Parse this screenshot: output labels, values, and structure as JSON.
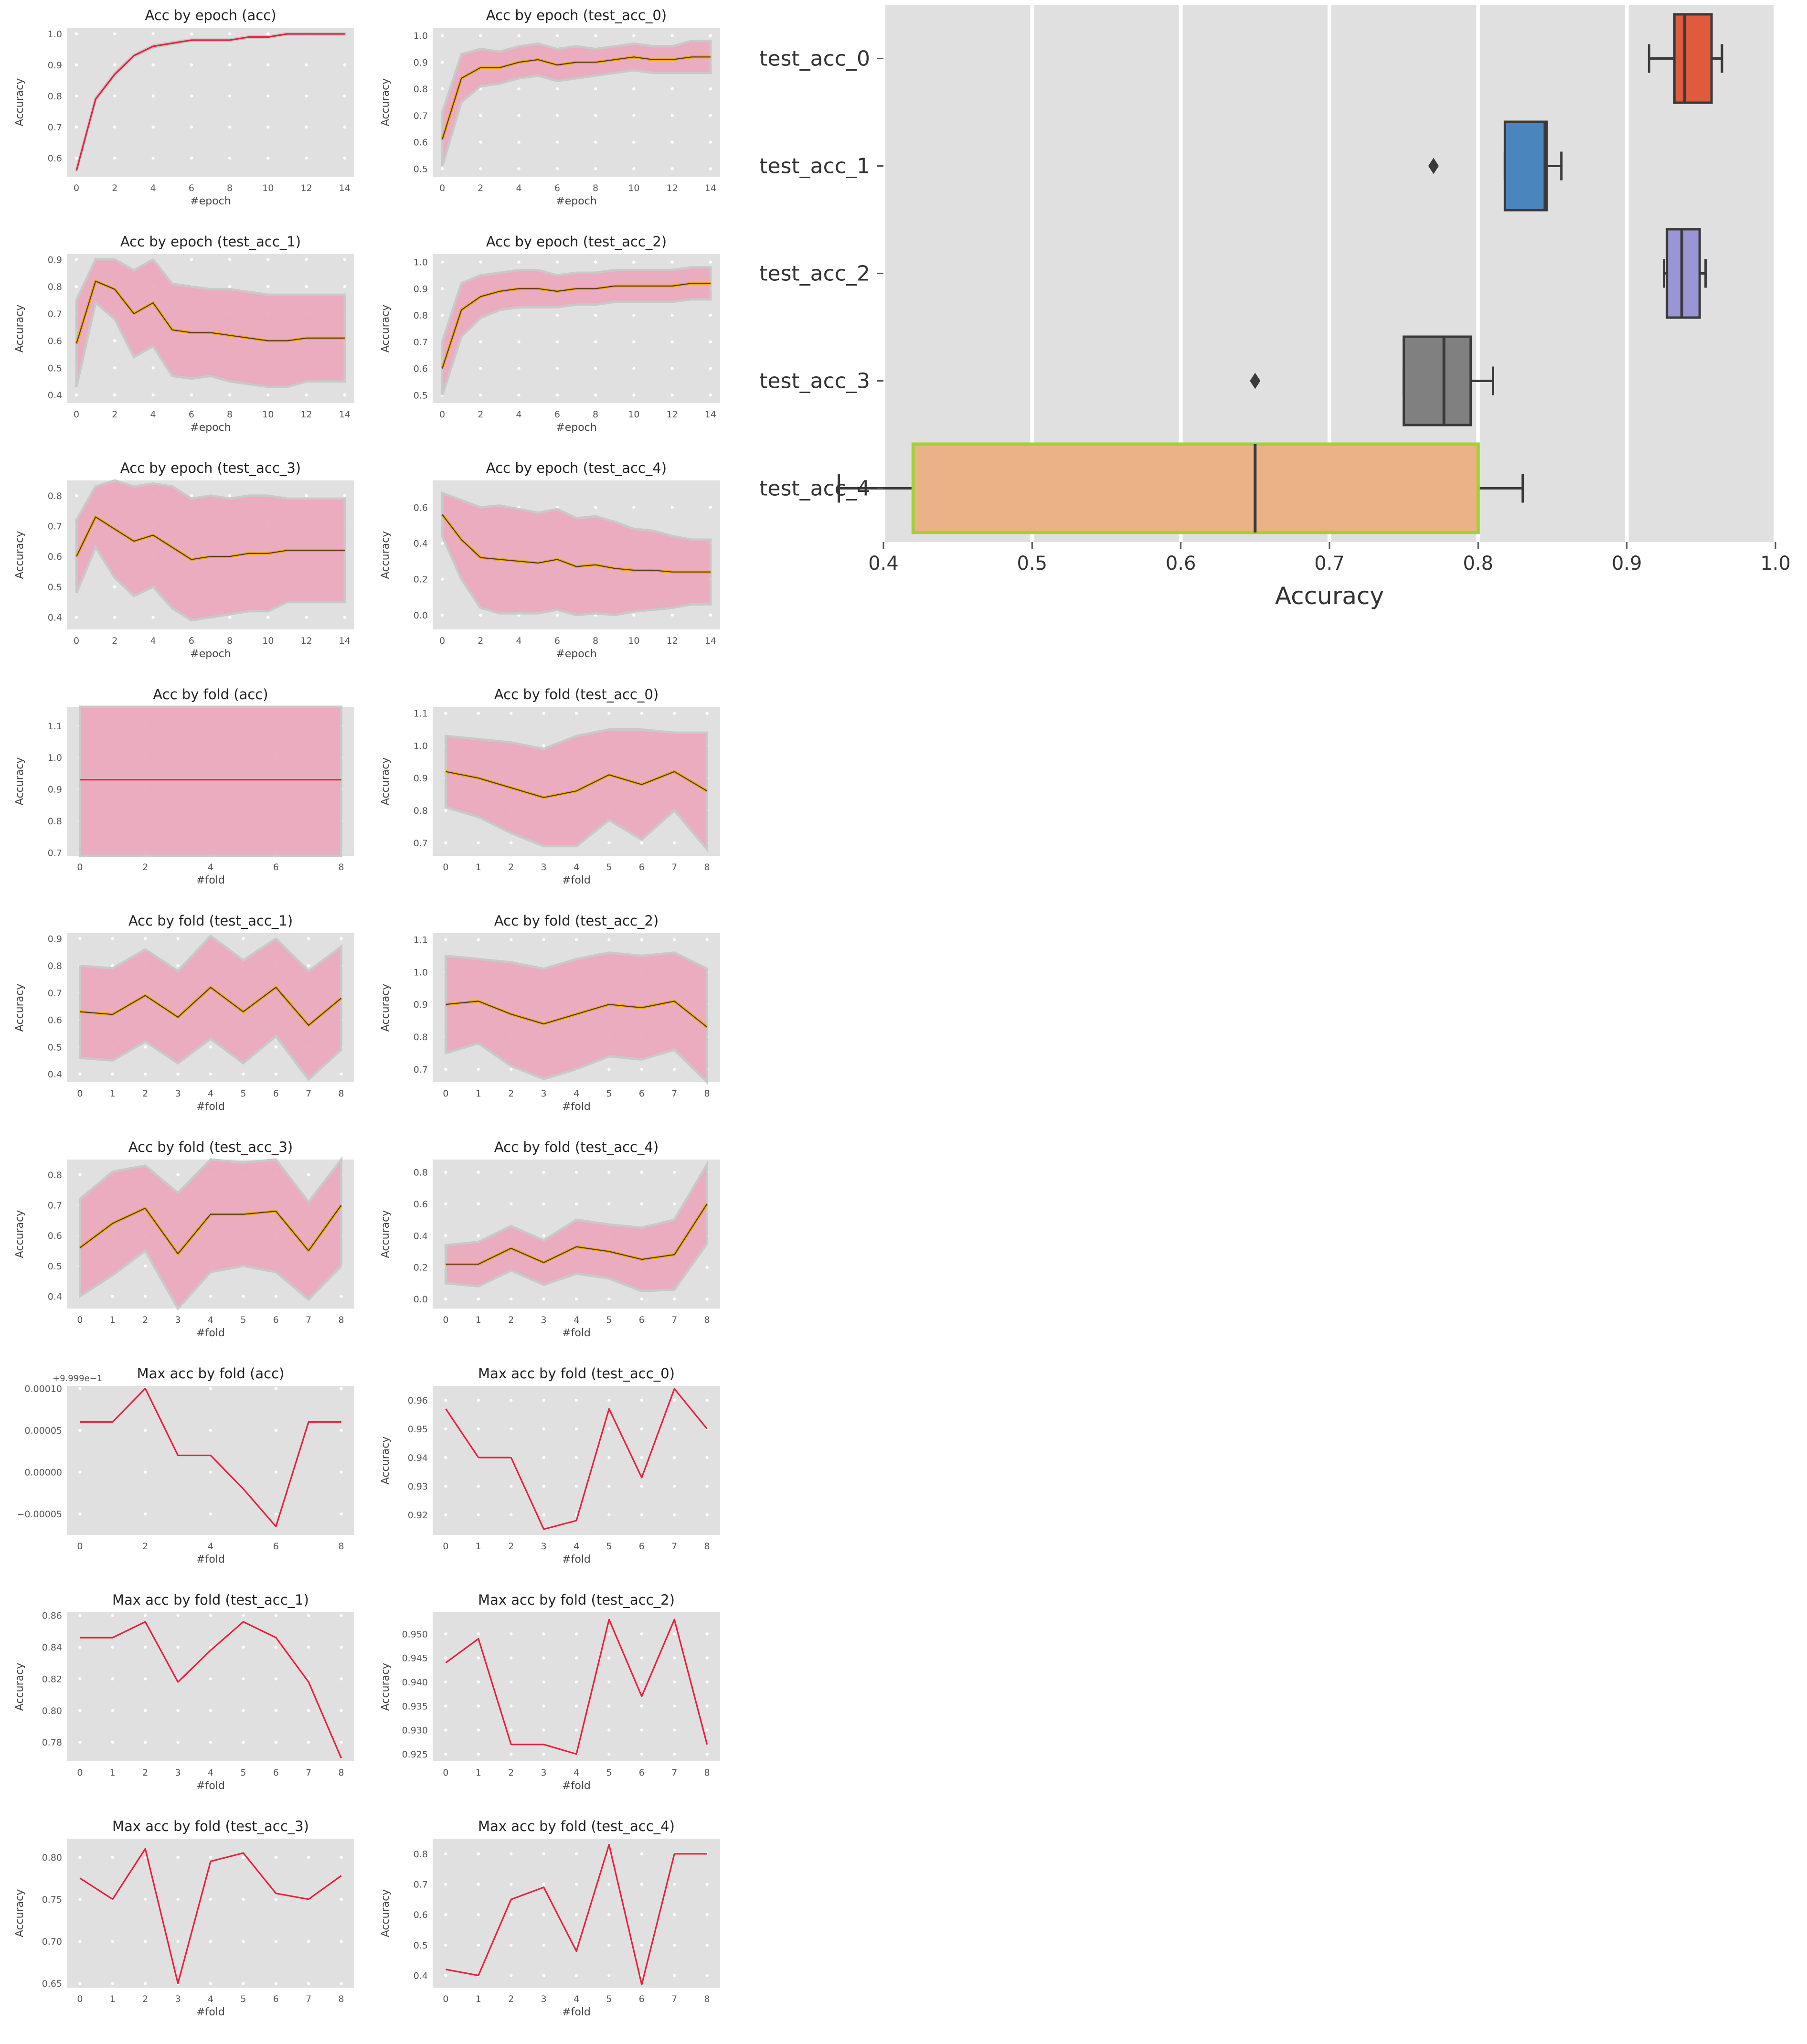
{
  "figure": {
    "background": "#ffffff",
    "plot_bg": "#e0e0e0",
    "grid_color": "#ffffff",
    "band_color": "#ebaabd",
    "band_edge_color": "#c8c8c8",
    "line_color": "#e8203f",
    "mean_color": "#ecaa1f",
    "mean_edge_color": "#5a3818"
  },
  "chart_data": [
    {
      "id": "p0",
      "type": "line",
      "title": "Acc by epoch (acc)",
      "xlabel": "#epoch",
      "ylabel": "Accuracy",
      "style": "band",
      "xticks": [
        0,
        2,
        4,
        6,
        8,
        10,
        12,
        14
      ],
      "yticks": [
        0.6,
        0.7,
        0.8,
        0.9,
        1.0
      ],
      "xlim": [
        -0.5,
        14.5
      ],
      "ylim": [
        0.54,
        1.02
      ],
      "x": [
        0,
        1,
        2,
        3,
        4,
        5,
        6,
        7,
        8,
        9,
        10,
        11,
        12,
        13,
        14
      ],
      "y": [
        0.56,
        0.79,
        0.87,
        0.93,
        0.96,
        0.97,
        0.98,
        0.98,
        0.98,
        0.99,
        0.99,
        1.0,
        1.0,
        1.0,
        1.0
      ],
      "band": [
        0.003,
        0.004,
        0.004,
        0.003,
        0.003,
        0.003,
        0.002,
        0.002,
        0.002,
        0.002,
        0.002,
        0.002,
        0.002,
        0.002,
        0.002
      ]
    },
    {
      "id": "p1",
      "type": "line",
      "title": "Acc by epoch (test_acc_0)",
      "xlabel": "#epoch",
      "ylabel": "Accuracy",
      "style": "band",
      "xticks": [
        0,
        2,
        4,
        6,
        8,
        10,
        12,
        14
      ],
      "yticks": [
        0.5,
        0.6,
        0.7,
        0.8,
        0.9,
        1.0
      ],
      "xlim": [
        -0.5,
        14.5
      ],
      "ylim": [
        0.47,
        1.03
      ],
      "x": [
        0,
        1,
        2,
        3,
        4,
        5,
        6,
        7,
        8,
        9,
        10,
        11,
        12,
        13,
        14
      ],
      "y": [
        0.61,
        0.84,
        0.88,
        0.88,
        0.9,
        0.91,
        0.89,
        0.9,
        0.9,
        0.91,
        0.92,
        0.91,
        0.91,
        0.92,
        0.92
      ],
      "band": [
        0.1,
        0.09,
        0.07,
        0.06,
        0.06,
        0.06,
        0.06,
        0.06,
        0.05,
        0.05,
        0.05,
        0.05,
        0.05,
        0.06,
        0.06
      ]
    },
    {
      "id": "p2",
      "type": "line",
      "title": "Acc by epoch (test_acc_1)",
      "xlabel": "#epoch",
      "ylabel": "Accuracy",
      "style": "band",
      "xticks": [
        0,
        2,
        4,
        6,
        8,
        10,
        12,
        14
      ],
      "yticks": [
        0.4,
        0.5,
        0.6,
        0.7,
        0.8,
        0.9
      ],
      "xlim": [
        -0.5,
        14.5
      ],
      "ylim": [
        0.37,
        0.92
      ],
      "x": [
        0,
        1,
        2,
        3,
        4,
        5,
        6,
        7,
        8,
        9,
        10,
        11,
        12,
        13,
        14
      ],
      "y": [
        0.59,
        0.82,
        0.79,
        0.7,
        0.74,
        0.64,
        0.63,
        0.63,
        0.62,
        0.61,
        0.6,
        0.6,
        0.61,
        0.61,
        0.61
      ],
      "band": [
        0.16,
        0.08,
        0.11,
        0.16,
        0.16,
        0.17,
        0.17,
        0.16,
        0.17,
        0.17,
        0.17,
        0.17,
        0.16,
        0.16,
        0.16
      ]
    },
    {
      "id": "p3",
      "type": "line",
      "title": "Acc by epoch (test_acc_2)",
      "xlabel": "#epoch",
      "ylabel": "Accuracy",
      "style": "band",
      "xticks": [
        0,
        2,
        4,
        6,
        8,
        10,
        12,
        14
      ],
      "yticks": [
        0.5,
        0.6,
        0.7,
        0.8,
        0.9,
        1.0
      ],
      "xlim": [
        -0.5,
        14.5
      ],
      "ylim": [
        0.47,
        1.03
      ],
      "x": [
        0,
        1,
        2,
        3,
        4,
        5,
        6,
        7,
        8,
        9,
        10,
        11,
        12,
        13,
        14
      ],
      "y": [
        0.6,
        0.82,
        0.87,
        0.89,
        0.9,
        0.9,
        0.89,
        0.9,
        0.9,
        0.91,
        0.91,
        0.91,
        0.91,
        0.92,
        0.92
      ],
      "band": [
        0.1,
        0.1,
        0.08,
        0.07,
        0.07,
        0.07,
        0.06,
        0.06,
        0.06,
        0.06,
        0.06,
        0.06,
        0.06,
        0.06,
        0.06
      ]
    },
    {
      "id": "p4",
      "type": "line",
      "title": "Acc by epoch (test_acc_3)",
      "xlabel": "#epoch",
      "ylabel": "Accuracy",
      "style": "band",
      "xticks": [
        0,
        2,
        4,
        6,
        8,
        10,
        12,
        14
      ],
      "yticks": [
        0.4,
        0.5,
        0.6,
        0.7,
        0.8
      ],
      "xlim": [
        -0.5,
        14.5
      ],
      "ylim": [
        0.36,
        0.85
      ],
      "x": [
        0,
        1,
        2,
        3,
        4,
        5,
        6,
        7,
        8,
        9,
        10,
        11,
        12,
        13,
        14
      ],
      "y": [
        0.6,
        0.73,
        0.69,
        0.65,
        0.67,
        0.63,
        0.59,
        0.6,
        0.6,
        0.61,
        0.61,
        0.62,
        0.62,
        0.62,
        0.62
      ],
      "band": [
        0.12,
        0.1,
        0.16,
        0.18,
        0.17,
        0.2,
        0.2,
        0.2,
        0.19,
        0.19,
        0.19,
        0.17,
        0.17,
        0.17,
        0.17
      ]
    },
    {
      "id": "p5",
      "type": "line",
      "title": "Acc by epoch (test_acc_4)",
      "xlabel": "#epoch",
      "ylabel": "Accuracy",
      "style": "band",
      "xticks": [
        0,
        2,
        4,
        6,
        8,
        10,
        12,
        14
      ],
      "yticks": [
        0.0,
        0.2,
        0.4,
        0.6
      ],
      "xlim": [
        -0.5,
        14.5
      ],
      "ylim": [
        -0.08,
        0.75
      ],
      "x": [
        0,
        1,
        2,
        3,
        4,
        5,
        6,
        7,
        8,
        9,
        10,
        11,
        12,
        13,
        14
      ],
      "y": [
        0.56,
        0.42,
        0.32,
        0.31,
        0.3,
        0.29,
        0.31,
        0.27,
        0.28,
        0.26,
        0.25,
        0.25,
        0.24,
        0.24,
        0.24
      ],
      "band": [
        0.12,
        0.22,
        0.28,
        0.3,
        0.29,
        0.28,
        0.28,
        0.27,
        0.27,
        0.26,
        0.23,
        0.22,
        0.2,
        0.18,
        0.18
      ]
    },
    {
      "id": "p6",
      "type": "line",
      "title": "Acc by fold (acc)",
      "xlabel": "#fold",
      "ylabel": "Accuracy",
      "style": "band",
      "xticks": [
        0,
        2,
        4,
        6,
        8
      ],
      "yticks": [
        0.7,
        0.8,
        0.9,
        1.0,
        1.1
      ],
      "xlim": [
        -0.4,
        8.4
      ],
      "ylim": [
        0.69,
        1.16
      ],
      "x": [
        0,
        1,
        2,
        3,
        4,
        5,
        6,
        7,
        8
      ],
      "y": [
        0.93,
        0.93,
        0.93,
        0.93,
        0.93,
        0.93,
        0.93,
        0.93,
        0.93
      ],
      "band": [
        0.24,
        0.24,
        0.24,
        0.24,
        0.24,
        0.24,
        0.24,
        0.24,
        0.24
      ]
    },
    {
      "id": "p7",
      "type": "line",
      "title": "Acc by fold (test_acc_0)",
      "xlabel": "#fold",
      "ylabel": "Accuracy",
      "style": "band",
      "xticks": [
        0,
        1,
        2,
        3,
        4,
        5,
        6,
        7,
        8
      ],
      "yticks": [
        0.7,
        0.8,
        0.9,
        1.0,
        1.1
      ],
      "xlim": [
        -0.4,
        8.4
      ],
      "ylim": [
        0.66,
        1.12
      ],
      "x": [
        0,
        1,
        2,
        3,
        4,
        5,
        6,
        7,
        8
      ],
      "y": [
        0.92,
        0.9,
        0.87,
        0.84,
        0.86,
        0.91,
        0.88,
        0.92,
        0.86
      ],
      "band": [
        0.11,
        0.12,
        0.14,
        0.15,
        0.17,
        0.14,
        0.17,
        0.12,
        0.18
      ]
    },
    {
      "id": "p8",
      "type": "line",
      "title": "Acc by fold (test_acc_1)",
      "xlabel": "#fold",
      "ylabel": "Accuracy",
      "style": "band",
      "xticks": [
        0,
        1,
        2,
        3,
        4,
        5,
        6,
        7,
        8
      ],
      "yticks": [
        0.4,
        0.5,
        0.6,
        0.7,
        0.8,
        0.9
      ],
      "xlim": [
        -0.4,
        8.4
      ],
      "ylim": [
        0.37,
        0.92
      ],
      "x": [
        0,
        1,
        2,
        3,
        4,
        5,
        6,
        7,
        8
      ],
      "y": [
        0.63,
        0.62,
        0.69,
        0.61,
        0.72,
        0.63,
        0.72,
        0.58,
        0.68
      ],
      "band": [
        0.17,
        0.17,
        0.17,
        0.17,
        0.19,
        0.19,
        0.18,
        0.2,
        0.19
      ]
    },
    {
      "id": "p9",
      "type": "line",
      "title": "Acc by fold (test_acc_2)",
      "xlabel": "#fold",
      "ylabel": "Accuracy",
      "style": "band",
      "xticks": [
        0,
        1,
        2,
        3,
        4,
        5,
        6,
        7,
        8
      ],
      "yticks": [
        0.7,
        0.8,
        0.9,
        1.0,
        1.1
      ],
      "xlim": [
        -0.4,
        8.4
      ],
      "ylim": [
        0.66,
        1.12
      ],
      "x": [
        0,
        1,
        2,
        3,
        4,
        5,
        6,
        7,
        8
      ],
      "y": [
        0.9,
        0.91,
        0.87,
        0.84,
        0.87,
        0.9,
        0.89,
        0.91,
        0.83
      ],
      "band": [
        0.15,
        0.13,
        0.16,
        0.17,
        0.17,
        0.16,
        0.16,
        0.15,
        0.18
      ]
    },
    {
      "id": "p10",
      "type": "line",
      "title": "Acc by fold (test_acc_3)",
      "xlabel": "#fold",
      "ylabel": "Accuracy",
      "style": "band",
      "xticks": [
        0,
        1,
        2,
        3,
        4,
        5,
        6,
        7,
        8
      ],
      "yticks": [
        0.4,
        0.5,
        0.6,
        0.7,
        0.8
      ],
      "xlim": [
        -0.4,
        8.4
      ],
      "ylim": [
        0.36,
        0.85
      ],
      "x": [
        0,
        1,
        2,
        3,
        4,
        5,
        6,
        7,
        8
      ],
      "y": [
        0.56,
        0.64,
        0.69,
        0.54,
        0.67,
        0.67,
        0.68,
        0.55,
        0.7
      ],
      "band": [
        0.16,
        0.17,
        0.14,
        0.2,
        0.19,
        0.17,
        0.2,
        0.16,
        0.2
      ]
    },
    {
      "id": "p11",
      "type": "line",
      "title": "Acc by fold (test_acc_4)",
      "xlabel": "#fold",
      "ylabel": "Accuracy",
      "style": "band",
      "xticks": [
        0,
        1,
        2,
        3,
        4,
        5,
        6,
        7,
        8
      ],
      "yticks": [
        0.0,
        0.2,
        0.4,
        0.6,
        0.8
      ],
      "xlim": [
        -0.4,
        8.4
      ],
      "ylim": [
        -0.06,
        0.88
      ],
      "x": [
        0,
        1,
        2,
        3,
        4,
        5,
        6,
        7,
        8
      ],
      "y": [
        0.22,
        0.22,
        0.32,
        0.23,
        0.33,
        0.3,
        0.25,
        0.28,
        0.6
      ],
      "band": [
        0.12,
        0.14,
        0.14,
        0.14,
        0.17,
        0.17,
        0.2,
        0.22,
        0.25
      ]
    },
    {
      "id": "p12",
      "type": "line",
      "title": "Max acc by fold (acc)",
      "xlabel": "#fold",
      "ylabel": "",
      "style": "plain",
      "offset_text": "+9.999e−1",
      "xticks": [
        0,
        2,
        4,
        6,
        8
      ],
      "yticks": [
        -5e-05,
        0.0,
        5e-05,
        0.0001
      ],
      "ytick_labels": [
        "−0.00005",
        "0.00000",
        "0.00005",
        "0.00010"
      ],
      "xlim": [
        -0.4,
        8.4
      ],
      "ylim": [
        -7.5e-05,
        0.000103
      ],
      "x": [
        0,
        1,
        2,
        3,
        4,
        5,
        6,
        7,
        8
      ],
      "y": [
        6e-05,
        6e-05,
        0.0001,
        2e-05,
        2e-05,
        -2e-05,
        -6.5e-05,
        6e-05,
        6e-05
      ]
    },
    {
      "id": "p13",
      "type": "line",
      "title": "Max acc by fold (test_acc_0)",
      "xlabel": "#fold",
      "ylabel": "Accuracy",
      "style": "plain",
      "xticks": [
        0,
        1,
        2,
        3,
        4,
        5,
        6,
        7,
        8
      ],
      "yticks": [
        0.92,
        0.93,
        0.94,
        0.95,
        0.96
      ],
      "xlim": [
        -0.4,
        8.4
      ],
      "ylim": [
        0.913,
        0.965
      ],
      "x": [
        0,
        1,
        2,
        3,
        4,
        5,
        6,
        7,
        8
      ],
      "y": [
        0.957,
        0.94,
        0.94,
        0.915,
        0.918,
        0.957,
        0.933,
        0.964,
        0.95
      ]
    },
    {
      "id": "p14",
      "type": "line",
      "title": "Max acc by fold (test_acc_1)",
      "xlabel": "#fold",
      "ylabel": "Accuracy",
      "style": "plain",
      "xticks": [
        0,
        1,
        2,
        3,
        4,
        5,
        6,
        7,
        8
      ],
      "yticks": [
        0.78,
        0.8,
        0.82,
        0.84,
        0.86
      ],
      "ytick_labels": [
        "0.78",
        "0.80",
        "0.82",
        "0.84",
        "0.86"
      ],
      "xlim": [
        -0.4,
        8.4
      ],
      "ylim": [
        0.768,
        0.862
      ],
      "x": [
        0,
        1,
        2,
        3,
        4,
        5,
        6,
        7,
        8
      ],
      "y": [
        0.846,
        0.846,
        0.856,
        0.818,
        0.838,
        0.856,
        0.846,
        0.818,
        0.77
      ]
    },
    {
      "id": "p15",
      "type": "line",
      "title": "Max acc by fold (test_acc_2)",
      "xlabel": "#fold",
      "ylabel": "Accuracy",
      "style": "plain",
      "xticks": [
        0,
        1,
        2,
        3,
        4,
        5,
        6,
        7,
        8
      ],
      "yticks": [
        0.925,
        0.93,
        0.935,
        0.94,
        0.945,
        0.95
      ],
      "ytick_labels": [
        "0.925",
        "0.930",
        "0.935",
        "0.940",
        "0.945",
        "0.950"
      ],
      "xlim": [
        -0.4,
        8.4
      ],
      "ylim": [
        0.9235,
        0.9545
      ],
      "x": [
        0,
        1,
        2,
        3,
        4,
        5,
        6,
        7,
        8
      ],
      "y": [
        0.944,
        0.949,
        0.927,
        0.927,
        0.925,
        0.953,
        0.937,
        0.953,
        0.927
      ]
    },
    {
      "id": "p16",
      "type": "line",
      "title": "Max acc by fold (test_acc_3)",
      "xlabel": "#fold",
      "ylabel": "Accuracy",
      "style": "plain",
      "xticks": [
        0,
        1,
        2,
        3,
        4,
        5,
        6,
        7,
        8
      ],
      "yticks": [
        0.65,
        0.7,
        0.75,
        0.8
      ],
      "ytick_labels": [
        "0.65",
        "0.70",
        "0.75",
        "0.80"
      ],
      "xlim": [
        -0.4,
        8.4
      ],
      "ylim": [
        0.645,
        0.822
      ],
      "x": [
        0,
        1,
        2,
        3,
        4,
        5,
        6,
        7,
        8
      ],
      "y": [
        0.775,
        0.75,
        0.81,
        0.65,
        0.795,
        0.805,
        0.757,
        0.75,
        0.778
      ]
    },
    {
      "id": "p17",
      "type": "line",
      "title": "Max acc by fold (test_acc_4)",
      "xlabel": "#fold",
      "ylabel": "Accuracy",
      "style": "plain",
      "xticks": [
        0,
        1,
        2,
        3,
        4,
        5,
        6,
        7,
        8
      ],
      "yticks": [
        0.4,
        0.5,
        0.6,
        0.7,
        0.8
      ],
      "xlim": [
        -0.4,
        8.4
      ],
      "ylim": [
        0.36,
        0.85
      ],
      "x": [
        0,
        1,
        2,
        3,
        4,
        5,
        6,
        7,
        8
      ],
      "y": [
        0.42,
        0.4,
        0.65,
        0.69,
        0.48,
        0.83,
        0.37,
        0.8,
        0.8
      ]
    },
    {
      "id": "box",
      "type": "box",
      "orient": "horizontal",
      "xlabel": "Accuracy",
      "xlim": [
        0.4,
        1.0
      ],
      "xticks": [
        0.4,
        0.5,
        0.6,
        0.7,
        0.8,
        0.9,
        1.0
      ],
      "xtick_labels": [
        "0.4",
        "0.5",
        "0.6",
        "0.7",
        "0.8",
        "0.9",
        "1.0"
      ],
      "categories": [
        "test_acc_0",
        "test_acc_1",
        "test_acc_2",
        "test_acc_3",
        "test_acc_4"
      ],
      "boxes": [
        {
          "whislo": 0.915,
          "q1": 0.932,
          "med": 0.939,
          "q3": 0.957,
          "whishi": 0.964,
          "fliers": [],
          "color": "#e05a3e"
        },
        {
          "whislo": 0.818,
          "q1": 0.818,
          "med": 0.845,
          "q3": 0.846,
          "whishi": 0.856,
          "fliers": [
            0.77
          ],
          "color": "#4a86bd"
        },
        {
          "whislo": 0.925,
          "q1": 0.927,
          "med": 0.937,
          "q3": 0.949,
          "whishi": 0.953,
          "fliers": [],
          "color": "#9a96d6"
        },
        {
          "whislo": 0.75,
          "q1": 0.75,
          "med": 0.777,
          "q3": 0.795,
          "whishi": 0.81,
          "fliers": [
            0.65
          ],
          "color": "#808080"
        },
        {
          "whislo": 0.37,
          "q1": 0.42,
          "med": 0.65,
          "q3": 0.8,
          "whishi": 0.83,
          "fliers": [],
          "color": "#eab387",
          "edge": "#a8cd3a"
        }
      ]
    }
  ]
}
